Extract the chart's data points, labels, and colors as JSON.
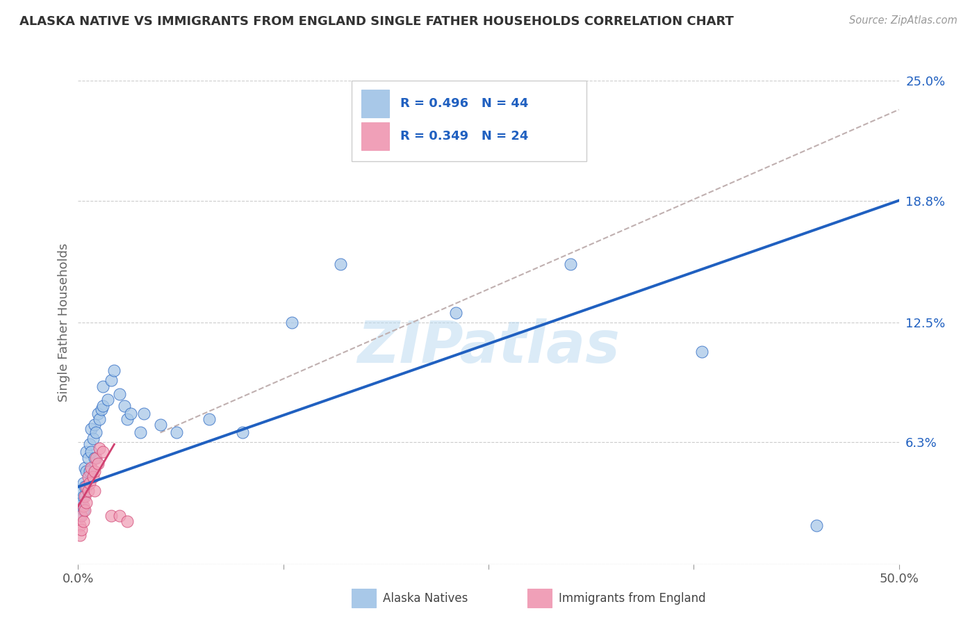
{
  "title": "ALASKA NATIVE VS IMMIGRANTS FROM ENGLAND SINGLE FATHER HOUSEHOLDS CORRELATION CHART",
  "source": "Source: ZipAtlas.com",
  "ylabel": "Single Father Households",
  "xlim": [
    0.0,
    0.5
  ],
  "ylim": [
    0.0,
    0.25
  ],
  "y_ticks_right": [
    0.0,
    0.063,
    0.125,
    0.188,
    0.25
  ],
  "y_tick_labels_right": [
    "",
    "6.3%",
    "12.5%",
    "18.8%",
    "25.0%"
  ],
  "legend_r1": "R = 0.496",
  "legend_n1": "N = 44",
  "legend_r2": "R = 0.349",
  "legend_n2": "N = 24",
  "legend_label1": "Alaska Natives",
  "legend_label2": "Immigrants from England",
  "color_blue": "#a8c8e8",
  "color_pink": "#f0a0b8",
  "line_blue": "#2060c0",
  "line_pink": "#d04070",
  "line_dashed": "#c0b0b0",
  "watermark": "ZIPatlas",
  "blue_points": [
    [
      0.001,
      0.03
    ],
    [
      0.001,
      0.025
    ],
    [
      0.002,
      0.038
    ],
    [
      0.002,
      0.032
    ],
    [
      0.003,
      0.042
    ],
    [
      0.003,
      0.035
    ],
    [
      0.003,
      0.028
    ],
    [
      0.004,
      0.05
    ],
    [
      0.004,
      0.04
    ],
    [
      0.005,
      0.058
    ],
    [
      0.005,
      0.048
    ],
    [
      0.006,
      0.055
    ],
    [
      0.007,
      0.062
    ],
    [
      0.007,
      0.048
    ],
    [
      0.008,
      0.058
    ],
    [
      0.008,
      0.07
    ],
    [
      0.009,
      0.065
    ],
    [
      0.01,
      0.072
    ],
    [
      0.01,
      0.055
    ],
    [
      0.011,
      0.068
    ],
    [
      0.012,
      0.078
    ],
    [
      0.013,
      0.075
    ],
    [
      0.014,
      0.08
    ],
    [
      0.015,
      0.082
    ],
    [
      0.015,
      0.092
    ],
    [
      0.018,
      0.085
    ],
    [
      0.02,
      0.095
    ],
    [
      0.022,
      0.1
    ],
    [
      0.025,
      0.088
    ],
    [
      0.028,
      0.082
    ],
    [
      0.03,
      0.075
    ],
    [
      0.032,
      0.078
    ],
    [
      0.038,
      0.068
    ],
    [
      0.04,
      0.078
    ],
    [
      0.05,
      0.072
    ],
    [
      0.06,
      0.068
    ],
    [
      0.08,
      0.075
    ],
    [
      0.1,
      0.068
    ],
    [
      0.13,
      0.125
    ],
    [
      0.16,
      0.155
    ],
    [
      0.23,
      0.13
    ],
    [
      0.3,
      0.155
    ],
    [
      0.38,
      0.11
    ],
    [
      0.45,
      0.02
    ]
  ],
  "pink_points": [
    [
      0.001,
      0.02
    ],
    [
      0.001,
      0.015
    ],
    [
      0.002,
      0.025
    ],
    [
      0.002,
      0.018
    ],
    [
      0.003,
      0.03
    ],
    [
      0.003,
      0.022
    ],
    [
      0.004,
      0.035
    ],
    [
      0.004,
      0.028
    ],
    [
      0.005,
      0.04
    ],
    [
      0.005,
      0.032
    ],
    [
      0.006,
      0.045
    ],
    [
      0.006,
      0.038
    ],
    [
      0.007,
      0.042
    ],
    [
      0.008,
      0.05
    ],
    [
      0.009,
      0.045
    ],
    [
      0.01,
      0.048
    ],
    [
      0.01,
      0.038
    ],
    [
      0.011,
      0.055
    ],
    [
      0.012,
      0.052
    ],
    [
      0.013,
      0.06
    ],
    [
      0.015,
      0.058
    ],
    [
      0.02,
      0.025
    ],
    [
      0.025,
      0.025
    ],
    [
      0.03,
      0.022
    ]
  ],
  "blue_line_x": [
    0.0,
    0.5
  ],
  "blue_line_y": [
    0.04,
    0.188
  ],
  "pink_line_x": [
    0.0,
    0.022
  ],
  "pink_line_y": [
    0.03,
    0.062
  ],
  "dashed_line_x": [
    0.05,
    0.5
  ],
  "dashed_line_y": [
    0.068,
    0.235
  ],
  "background_color": "#ffffff",
  "grid_color": "#cccccc"
}
